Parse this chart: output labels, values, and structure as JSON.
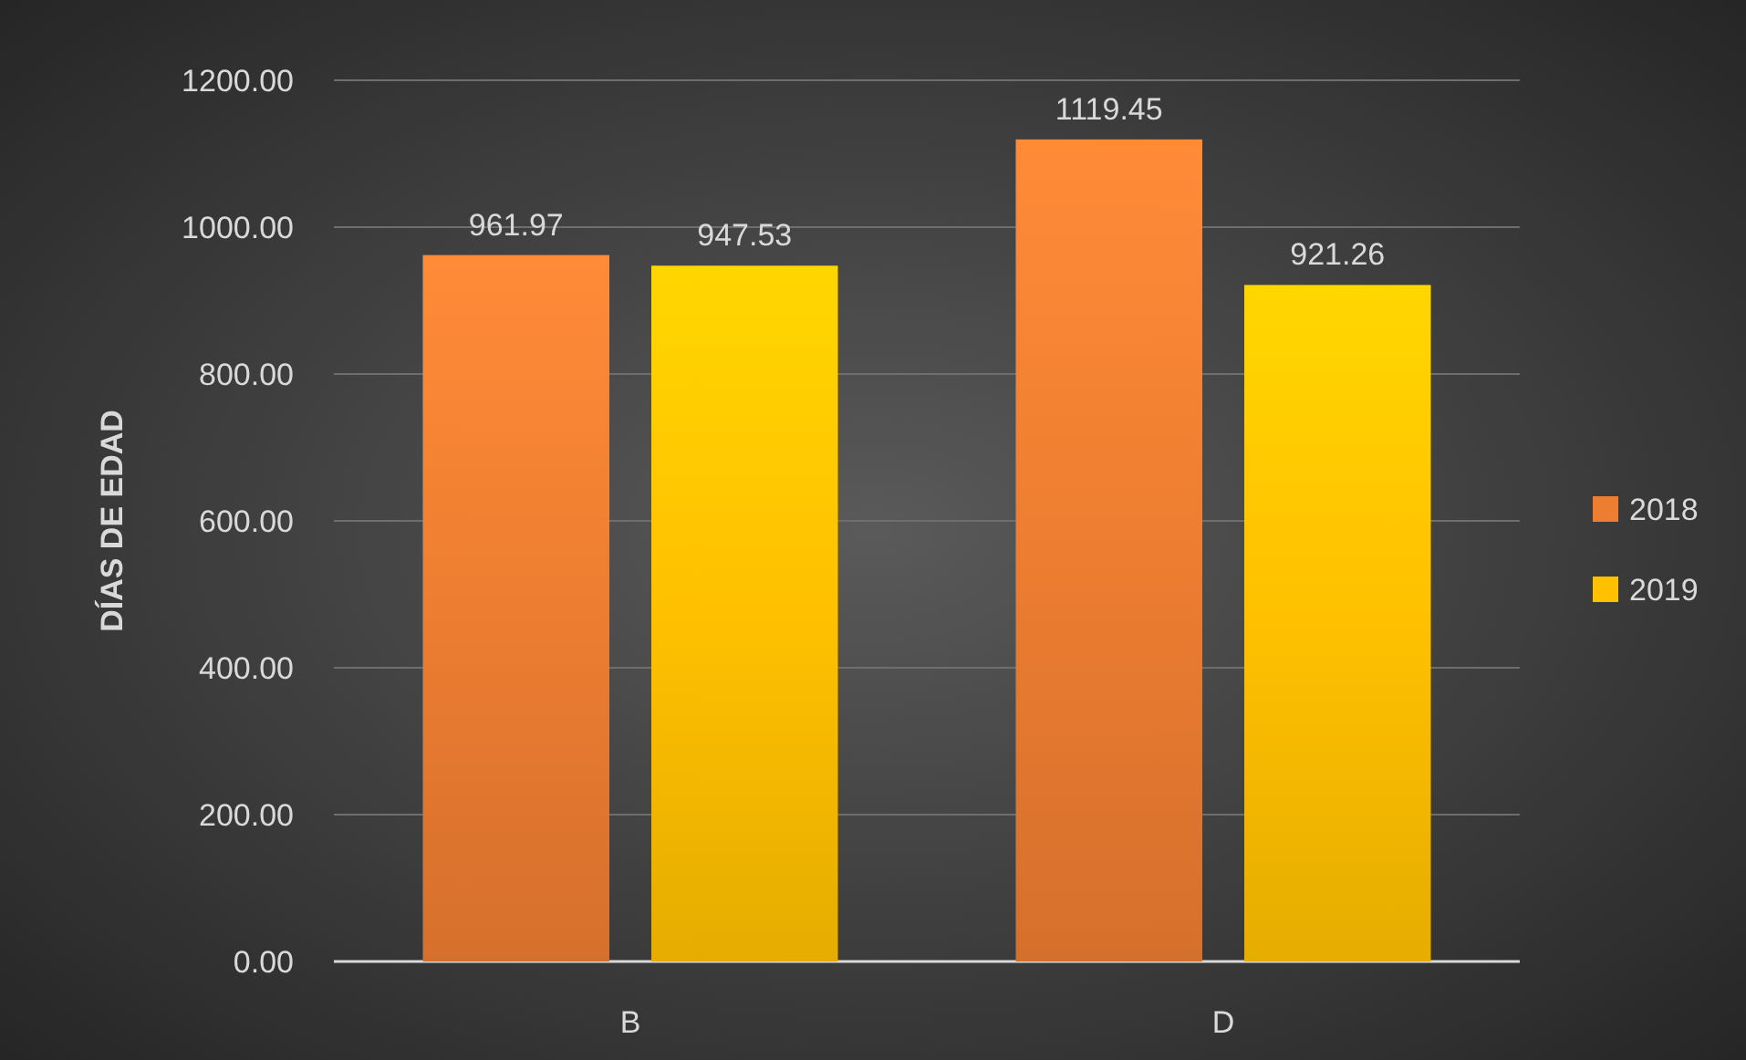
{
  "chart_data": {
    "type": "bar",
    "ylabel": "DÍAS DE EDAD",
    "categories": [
      "B",
      "D"
    ],
    "series": [
      {
        "name": "2018",
        "color": "#ed7d31",
        "values": [
          961.97,
          1119.45
        ]
      },
      {
        "name": "2019",
        "color": "#ffc000",
        "values": [
          947.53,
          921.26
        ]
      }
    ],
    "ylim": [
      0,
      1200
    ],
    "yticks": [
      {
        "value": 0,
        "label": "0.00"
      },
      {
        "value": 200,
        "label": "200.00"
      },
      {
        "value": 400,
        "label": "400.00"
      },
      {
        "value": 600,
        "label": "600.00"
      },
      {
        "value": 800,
        "label": "800.00"
      },
      {
        "value": 1000,
        "label": "1000.00"
      },
      {
        "value": 1200,
        "label": "1200.00"
      }
    ],
    "grid": "y",
    "legend": "right",
    "data_labels": true
  }
}
